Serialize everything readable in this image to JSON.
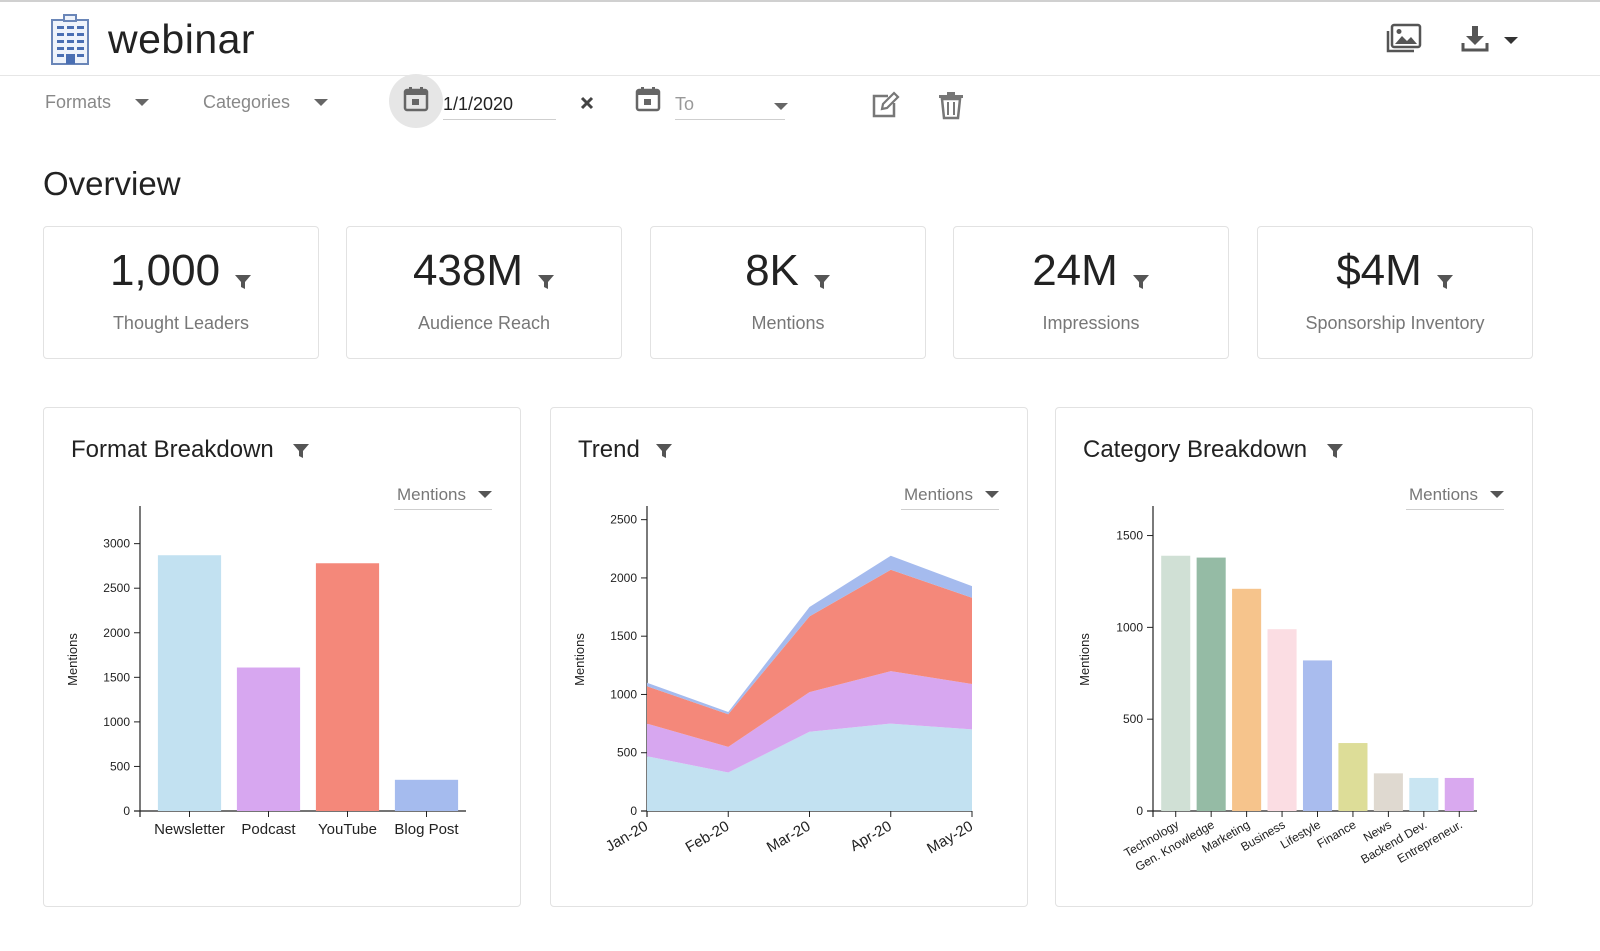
{
  "header": {
    "title": "webinar",
    "logo_icon": "office-building-icon",
    "actions": [
      {
        "name": "image-gallery-icon"
      },
      {
        "name": "download-icon"
      }
    ]
  },
  "filters": {
    "formats_label": "Formats",
    "categories_label": "Categories",
    "from_value": "1/1/2020",
    "to_placeholder": "To"
  },
  "overview": {
    "title": "Overview",
    "kpis": [
      {
        "value": "1,000",
        "label": "Thought Leaders"
      },
      {
        "value": "438M",
        "label": "Audience Reach"
      },
      {
        "value": "8K",
        "label": "Mentions"
      },
      {
        "value": "24M",
        "label": "Impressions"
      },
      {
        "value": "$4M",
        "label": "Sponsorship Inventory"
      }
    ]
  },
  "cards": {
    "format": {
      "title": "Format Breakdown",
      "metric": "Mentions"
    },
    "trend": {
      "title": "Trend",
      "metric": "Mentions"
    },
    "category": {
      "title": "Category Breakdown",
      "metric": "Mentions"
    }
  },
  "colors": {
    "newsletter": "#c2e1f1",
    "podcast": "#d7a7f0",
    "youtube": "#f4887a",
    "blogpost": "#a5bbee"
  },
  "chart_data": [
    {
      "type": "bar",
      "ylabel": "Mentions",
      "ylim": [
        0,
        3400
      ],
      "yticks": [
        0,
        500,
        1000,
        1500,
        2000,
        2500,
        3000
      ],
      "categories": [
        "Newsletter",
        "Podcast",
        "YouTube",
        "Blog Post"
      ],
      "values": [
        2870,
        1610,
        2780,
        350
      ],
      "colors": [
        "#c2e1f1",
        "#d7a7f0",
        "#f4887a",
        "#a5bbee"
      ]
    },
    {
      "type": "area",
      "ylabel": "Mentions",
      "ylim": [
        0,
        2600
      ],
      "yticks": [
        0,
        500,
        1000,
        1500,
        2000,
        2500
      ],
      "x": [
        "Jan-20",
        "Feb-20",
        "Mar-20",
        "Apr-20",
        "May-20"
      ],
      "series": [
        {
          "values": [
            470,
            330,
            680,
            750,
            700
          ],
          "color": "#c2e1f1"
        },
        {
          "values": [
            280,
            220,
            340,
            450,
            390
          ],
          "color": "#d7a7f0"
        },
        {
          "values": [
            320,
            280,
            650,
            870,
            740
          ],
          "color": "#f4887a"
        },
        {
          "values": [
            30,
            20,
            80,
            120,
            100
          ],
          "color": "#a5bbee"
        }
      ]
    },
    {
      "type": "bar",
      "ylabel": "Mentions",
      "ylim": [
        0,
        1650
      ],
      "yticks": [
        0,
        500,
        1000,
        1500
      ],
      "categories": [
        "Technology",
        "Gen. Knowledge",
        "Marketing",
        "Business",
        "Lifestyle",
        "Finance",
        "News",
        "Backend Dev.",
        "Entrepreneur."
      ],
      "values": [
        1390,
        1380,
        1210,
        990,
        820,
        370,
        205,
        180,
        180
      ],
      "colors": [
        "#d0e0d5",
        "#95bba5",
        "#f6c48c",
        "#fbdde3",
        "#a9bcee",
        "#dddd98",
        "#dfd9d0",
        "#c9e5f2",
        "#d9a9ef"
      ]
    }
  ]
}
